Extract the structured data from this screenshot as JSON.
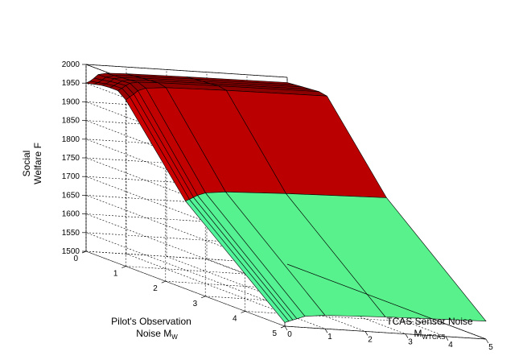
{
  "chart_data": {
    "type": "surface",
    "grid": true,
    "x_label": "Pilot's Observation",
    "x_label_line2": "Noise M",
    "x_label_sub": "W",
    "y_label": "TCAS Sensor Noise",
    "y_label_line2": "M",
    "y_label_sub": "WTCAS",
    "z_label_line1": "Social",
    "z_label_line2": "Welfare F",
    "x_ticks": [
      "0",
      "1",
      "2",
      "3",
      "4",
      "5"
    ],
    "y_ticks": [
      "0",
      "1",
      "2",
      "3",
      "4",
      "5"
    ],
    "z_ticks": [
      "1500",
      "1550",
      "1600",
      "1650",
      "1700",
      "1750",
      "1800",
      "1850",
      "1900",
      "1950",
      "2000"
    ],
    "x_range": [
      0,
      5
    ],
    "y_range": [
      0,
      5
    ],
    "z_range": [
      1500,
      2000
    ],
    "x": [
      0,
      0.2,
      0.4,
      0.6,
      0.8,
      1,
      2.5,
      5
    ],
    "y": [
      0,
      0.1,
      0.2,
      0.3,
      0.5,
      1,
      2.5,
      5
    ],
    "z": [
      [
        1950,
        1956,
        1965,
        1975,
        1980,
        1982,
        1984,
        1986
      ],
      [
        1955,
        1960,
        1968,
        1976,
        1982,
        1984,
        1986,
        1988
      ],
      [
        1960,
        1965,
        1972,
        1980,
        1984,
        1986,
        1988,
        1990
      ],
      [
        1962,
        1968,
        1975,
        1982,
        1986,
        1988,
        1990,
        1992
      ],
      [
        1962,
        1969,
        1977,
        1984,
        1988,
        1990,
        1992,
        1994
      ],
      [
        1945,
        1954,
        1962,
        1972,
        1980,
        1985,
        1988,
        1990
      ],
      [
        1735,
        1740,
        1746,
        1752,
        1760,
        1766,
        1772,
        1778
      ],
      [
        1510,
        1514,
        1518,
        1522,
        1530,
        1536,
        1542,
        1548
      ]
    ],
    "colors": {
      "top": "#ff0000",
      "low": "#40ffb0",
      "edge": "#000000"
    }
  }
}
